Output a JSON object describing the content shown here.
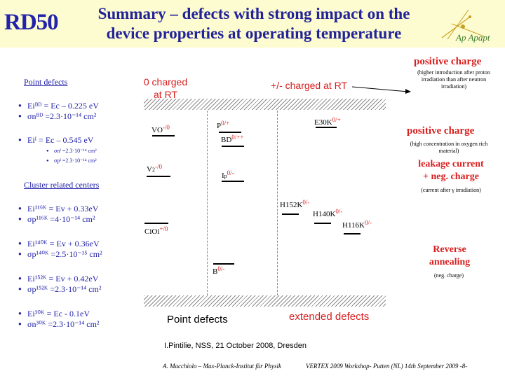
{
  "header": {
    "logo": "RD50",
    "title_line1": "Summary – defects with strong impact on the",
    "title_line2": "device properties at operating temperature",
    "logo_right": "Ap Apapt"
  },
  "left": {
    "point_defects_title": "Point defects",
    "pd1_line1": "Eiᴮᴰ = Ec – 0.225 eV",
    "pd1_line2": "σnᴮᴰ =2.3·10⁻¹⁴ cm²",
    "pd2_line1": "Eiᴵ = Ec – 0.545 eV",
    "pd2_sub1": "σnᴵ =2.3·10⁻¹⁴ cm²",
    "pd2_sub2": "σpᴵ =2.3·10⁻¹⁴ cm²",
    "cluster_title": "Cluster related centers",
    "c1_line1": "Ei¹¹⁶ᴷ = Ev + 0.33eV",
    "c1_line2": "σp¹¹⁶ᴷ =4·10⁻¹⁴ cm²",
    "c2_line1": "Ei¹⁴⁰ᴷ = Ev + 0.36eV",
    "c2_line2": "σp¹⁴⁰ᴷ =2.5·10⁻¹⁵ cm²",
    "c3_line1": "Ei¹⁵²ᴷ = Ev + 0.42eV",
    "c3_line2": "σp¹⁵²ᴷ =2.3·10⁻¹⁴ cm²",
    "c4_line1": "Ei³⁰ᴷ = Ec - 0.1eV",
    "c4_line2": "σn³⁰ᴷ =2.3·10⁻¹⁴ cm²"
  },
  "diagram": {
    "zero_charged": "0 charged",
    "at_rt": "at RT",
    "pm_charged": "+/- charged at RT",
    "vo": "VO",
    "vo_charge": "-/0",
    "p": "P",
    "p_charge": "0/+",
    "bd": "BD",
    "bd_charge": "0/++",
    "e30k": "E30K",
    "e30k_charge": "0/+",
    "v2": "V",
    "v2_sub": "2",
    "v2_charge": "-/0",
    "ip": "I",
    "ip_sub": "p",
    "ip_charge": "0/-",
    "h152k": "H152K",
    "h152k_charge": "0/-",
    "h140k": "H140K",
    "h140k_charge": "0/-",
    "h116k": "H116K",
    "h116k_charge": "0/-",
    "cioi": "CiOi",
    "cioi_charge": "+/0",
    "b": "B",
    "b_charge": "0/-",
    "point_defects_label": "Point defects",
    "extended_defects_label": "extended defects"
  },
  "right": {
    "positive_charge_1": "positive charge",
    "note1": "(higher introduction after proton irradiation than after neutron irradiation)",
    "positive_charge_2": "positive charge",
    "note2": "(high concentration in oxygen rich material)",
    "leakage_line1": "leakage current",
    "leakage_line2": "+ neg. charge",
    "note3": "(current after γ irradiation)",
    "reverse_line1": "Reverse",
    "reverse_line2": "annealing",
    "note4": "(neg. charge)"
  },
  "footer": {
    "citation": "I.Pintilie, NSS, 21 October 2008, Dresden",
    "author": "A. Macchiolo – Max-Planck-Institut für Physik",
    "conference": "VERTEX 2009 Workshop- Putten (NL) 14th September 2009 -8-"
  }
}
